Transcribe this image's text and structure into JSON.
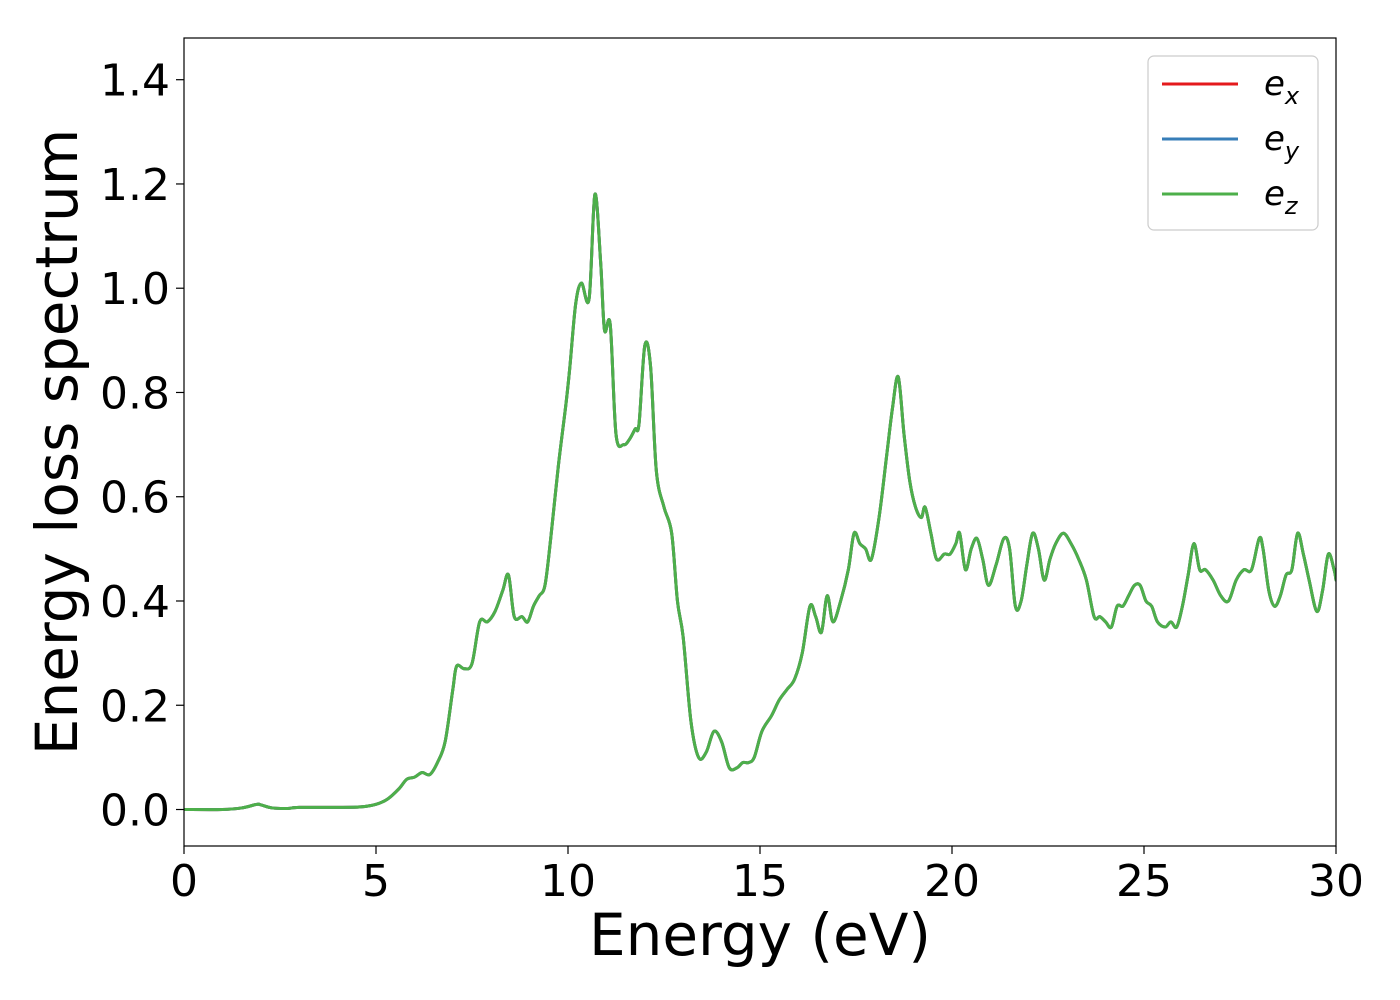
{
  "chart_data": {
    "type": "line",
    "title": "",
    "xlabel": "Energy (eV)",
    "ylabel": "Energy loss spectrum",
    "xlim": [
      0,
      30
    ],
    "ylim": [
      -0.07,
      1.48
    ],
    "xticks": [
      0,
      5,
      10,
      15,
      20,
      25,
      30
    ],
    "xtick_labels": [
      "0",
      "5",
      "10",
      "15",
      "20",
      "25",
      "30"
    ],
    "yticks": [
      0.0,
      0.2,
      0.4,
      0.6,
      0.8,
      1.0,
      1.2,
      1.4
    ],
    "ytick_labels": [
      "0.0",
      "0.2",
      "0.4",
      "0.6",
      "0.8",
      "1.0",
      "1.2",
      "1.4"
    ],
    "grid": false,
    "legend_position": "top-right",
    "series": [
      {
        "name": "e",
        "subscript": "x",
        "color": "#e41a1c"
      },
      {
        "name": "e",
        "subscript": "y",
        "color": "#377eb8"
      },
      {
        "name": "e",
        "subscript": "z",
        "color": "#4daf4a"
      }
    ],
    "x": [
      0,
      1,
      1.5,
      1.9,
      2.0,
      2.3,
      2.7,
      3.0,
      4.0,
      4.6,
      5.0,
      5.3,
      5.6,
      5.8,
      6.0,
      6.2,
      6.4,
      6.6,
      6.8,
      7.0,
      7.1,
      7.3,
      7.5,
      7.7,
      7.9,
      8.1,
      8.3,
      8.45,
      8.6,
      8.8,
      8.95,
      9.1,
      9.25,
      9.4,
      9.55,
      9.75,
      9.95,
      10.05,
      10.2,
      10.35,
      10.55,
      10.7,
      10.85,
      10.95,
      11.1,
      11.25,
      11.45,
      11.6,
      11.75,
      11.85,
      12.0,
      12.15,
      12.3,
      12.5,
      12.7,
      12.85,
      13.0,
      13.2,
      13.4,
      13.6,
      13.8,
      14.0,
      14.2,
      14.4,
      14.55,
      14.7,
      14.85,
      15.05,
      15.3,
      15.5,
      15.7,
      15.9,
      16.1,
      16.3,
      16.45,
      16.6,
      16.75,
      16.9,
      17.1,
      17.3,
      17.45,
      17.6,
      17.75,
      17.9,
      18.1,
      18.3,
      18.45,
      18.6,
      18.75,
      18.9,
      19.05,
      19.2,
      19.3,
      19.45,
      19.6,
      19.8,
      19.95,
      20.1,
      20.2,
      20.35,
      20.5,
      20.65,
      20.8,
      20.95,
      21.15,
      21.35,
      21.5,
      21.65,
      21.8,
      21.95,
      22.1,
      22.25,
      22.4,
      22.55,
      22.7,
      22.9,
      23.1,
      23.3,
      23.5,
      23.7,
      23.85,
      24.0,
      24.15,
      24.3,
      24.45,
      24.6,
      24.75,
      24.9,
      25.05,
      25.2,
      25.35,
      25.55,
      25.7,
      25.85,
      26.0,
      26.15,
      26.3,
      26.45,
      26.6,
      26.8,
      27.0,
      27.2,
      27.4,
      27.6,
      27.8,
      28.0,
      28.1,
      28.25,
      28.4,
      28.55,
      28.7,
      28.85,
      29.0,
      29.15,
      29.3,
      29.5,
      29.65,
      29.8,
      29.95,
      30.0
    ],
    "y": [
      0,
      0.0,
      0.003,
      0.01,
      0.009,
      0.003,
      0.002,
      0.004,
      0.004,
      0.005,
      0.01,
      0.02,
      0.04,
      0.058,
      0.062,
      0.071,
      0.067,
      0.09,
      0.13,
      0.23,
      0.275,
      0.27,
      0.28,
      0.36,
      0.36,
      0.38,
      0.42,
      0.45,
      0.37,
      0.37,
      0.36,
      0.39,
      0.41,
      0.43,
      0.52,
      0.66,
      0.78,
      0.85,
      0.97,
      1.01,
      0.98,
      1.18,
      1.05,
      0.92,
      0.93,
      0.72,
      0.7,
      0.71,
      0.73,
      0.74,
      0.89,
      0.85,
      0.65,
      0.58,
      0.53,
      0.4,
      0.33,
      0.17,
      0.1,
      0.11,
      0.15,
      0.13,
      0.08,
      0.08,
      0.09,
      0.09,
      0.1,
      0.15,
      0.18,
      0.21,
      0.23,
      0.25,
      0.3,
      0.39,
      0.37,
      0.34,
      0.41,
      0.36,
      0.4,
      0.46,
      0.53,
      0.51,
      0.5,
      0.48,
      0.56,
      0.68,
      0.77,
      0.83,
      0.72,
      0.63,
      0.58,
      0.56,
      0.58,
      0.53,
      0.48,
      0.49,
      0.49,
      0.51,
      0.53,
      0.46,
      0.5,
      0.52,
      0.48,
      0.43,
      0.47,
      0.52,
      0.5,
      0.39,
      0.4,
      0.47,
      0.53,
      0.5,
      0.44,
      0.48,
      0.51,
      0.53,
      0.51,
      0.48,
      0.44,
      0.37,
      0.37,
      0.36,
      0.35,
      0.39,
      0.39,
      0.41,
      0.43,
      0.43,
      0.4,
      0.39,
      0.36,
      0.35,
      0.36,
      0.35,
      0.39,
      0.45,
      0.51,
      0.46,
      0.46,
      0.44,
      0.41,
      0.4,
      0.44,
      0.46,
      0.46,
      0.52,
      0.5,
      0.42,
      0.39,
      0.41,
      0.45,
      0.46,
      0.53,
      0.49,
      0.44,
      0.38,
      0.42,
      0.49,
      0.46,
      0.44
    ]
  }
}
